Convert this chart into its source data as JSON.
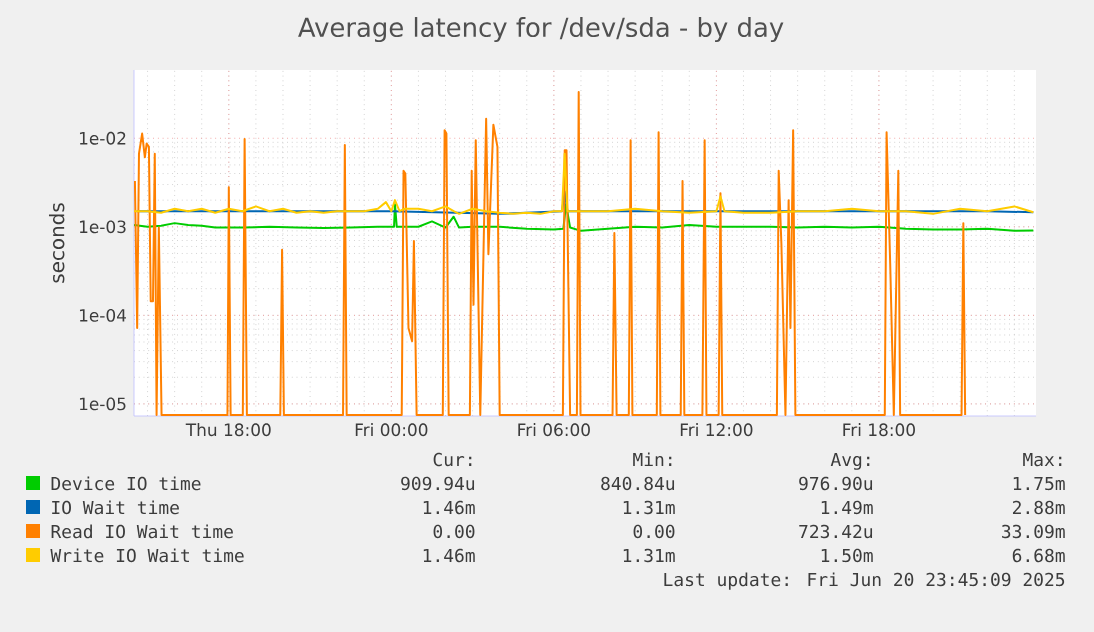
{
  "chart_data": {
    "type": "line",
    "title": "Average latency for /dev/sda - by day",
    "ylabel": "seconds",
    "log": "y",
    "grid": true,
    "legend": "bottom",
    "xlim": [
      "2025-06-19T14:30",
      "2025-06-20T23:48"
    ],
    "ylim": [
      7.3e-06,
      0.059
    ],
    "xticks": [
      {
        "value": "2025-06-19T18:00",
        "label": "Thu 18:00"
      },
      {
        "value": "2025-06-20T00:00",
        "label": "Fri 00:00"
      },
      {
        "value": "2025-06-20T06:00",
        "label": "Fri 06:00"
      },
      {
        "value": "2025-06-20T12:00",
        "label": "Fri 12:00"
      },
      {
        "value": "2025-06-20T18:00",
        "label": "Fri 18:00"
      }
    ],
    "yticks": [
      {
        "value": 1e-05,
        "label": "1e-05"
      },
      {
        "value": 0.0001,
        "label": "1e-04"
      },
      {
        "value": 0.001,
        "label": "1e-03"
      },
      {
        "value": 0.01,
        "label": "1e-02"
      }
    ],
    "series": [
      {
        "name": "Device IO time",
        "color": "#00cc00",
        "x": [
          "2025-06-19T14:30",
          "2025-06-19T15:00",
          "2025-06-19T15:30",
          "2025-06-19T16:00",
          "2025-06-19T16:30",
          "2025-06-19T17:00",
          "2025-06-19T17:30",
          "2025-06-19T18:30",
          "2025-06-19T19:30",
          "2025-06-19T20:30",
          "2025-06-19T21:30",
          "2025-06-19T22:30",
          "2025-06-19T23:30",
          "2025-06-20T00:06",
          "2025-06-20T00:08",
          "2025-06-20T00:12",
          "2025-06-20T01:00",
          "2025-06-20T01:30",
          "2025-06-20T02:00",
          "2025-06-20T02:18",
          "2025-06-20T02:30",
          "2025-06-20T03:00",
          "2025-06-20T04:00",
          "2025-06-20T05:00",
          "2025-06-20T06:00",
          "2025-06-20T06:21",
          "2025-06-20T06:27",
          "2025-06-20T06:36",
          "2025-06-20T07:00",
          "2025-06-20T08:00",
          "2025-06-20T09:00",
          "2025-06-20T10:00",
          "2025-06-20T11:00",
          "2025-06-20T12:00",
          "2025-06-20T13:00",
          "2025-06-20T14:00",
          "2025-06-20T15:00",
          "2025-06-20T16:00",
          "2025-06-20T17:00",
          "2025-06-20T18:00",
          "2025-06-20T19:00",
          "2025-06-20T20:00",
          "2025-06-20T21:00",
          "2025-06-20T22:00",
          "2025-06-20T23:00",
          "2025-06-20T23:42"
        ],
        "values": [
          0.00105,
          0.001,
          0.00103,
          0.0011,
          0.00105,
          0.00103,
          0.00098,
          0.00098,
          0.001,
          0.00098,
          0.00097,
          0.00098,
          0.001,
          0.001,
          0.0018,
          0.001,
          0.001,
          0.00115,
          0.00098,
          0.0013,
          0.00098,
          0.001,
          0.001,
          0.00095,
          0.00093,
          0.00095,
          0.0018,
          0.00098,
          0.0009,
          0.00095,
          0.001,
          0.00098,
          0.00105,
          0.001,
          0.001,
          0.001,
          0.00098,
          0.001,
          0.00098,
          0.001,
          0.00095,
          0.00093,
          0.00093,
          0.00095,
          0.0009,
          0.00091
        ]
      },
      {
        "name": "IO Wait time",
        "color": "#0066b3",
        "x": [
          "2025-06-19T14:36",
          "2025-06-19T16:00",
          "2025-06-19T20:00",
          "2025-06-20T00:00",
          "2025-06-20T04:00",
          "2025-06-20T06:18",
          "2025-06-20T06:24",
          "2025-06-20T06:30",
          "2025-06-20T22:00",
          "2025-06-20T23:42"
        ],
        "values": [
          0.0015,
          0.0015,
          0.0015,
          0.0015,
          0.0014,
          0.0015,
          0.0025,
          0.0015,
          0.0015,
          0.00146
        ]
      },
      {
        "name": "Read IO Wait time",
        "color": "#ff8000",
        "x": [
          "2025-06-19T14:32",
          "2025-06-19T14:37",
          "2025-06-19T14:41",
          "2025-06-19T14:48",
          "2025-06-19T14:54",
          "2025-06-19T14:58",
          "2025-06-19T15:03",
          "2025-06-19T15:07",
          "2025-06-19T15:12",
          "2025-06-19T15:16",
          "2025-06-19T15:20",
          "2025-06-19T15:25",
          "2025-06-19T15:31",
          "2025-06-19T17:57",
          "2025-06-19T18:00",
          "2025-06-19T18:04",
          "2025-06-19T18:31",
          "2025-06-19T18:35",
          "2025-06-19T18:40",
          "2025-06-19T19:54",
          "2025-06-19T19:58",
          "2025-06-19T20:02",
          "2025-06-19T22:13",
          "2025-06-19T22:17",
          "2025-06-19T22:21",
          "2025-06-20T00:23",
          "2025-06-20T00:27",
          "2025-06-20T00:31",
          "2025-06-20T00:38",
          "2025-06-20T00:46",
          "2025-06-20T00:50",
          "2025-06-20T00:56",
          "2025-06-20T01:54",
          "2025-06-20T01:58",
          "2025-06-20T02:02",
          "2025-06-20T02:07",
          "2025-06-20T02:54",
          "2025-06-20T02:58",
          "2025-06-20T03:02",
          "2025-06-20T03:07",
          "2025-06-20T03:17",
          "2025-06-20T03:30",
          "2025-06-20T03:35",
          "2025-06-20T03:46",
          "2025-06-20T03:55",
          "2025-06-20T04:00",
          "2025-06-20T06:20",
          "2025-06-20T06:24",
          "2025-06-20T06:28",
          "2025-06-20T06:36",
          "2025-06-20T06:51",
          "2025-06-20T06:55",
          "2025-06-20T06:59",
          "2025-06-20T08:10",
          "2025-06-20T08:14",
          "2025-06-20T08:19",
          "2025-06-20T08:46",
          "2025-06-20T08:50",
          "2025-06-20T08:54",
          "2025-06-20T09:48",
          "2025-06-20T09:52",
          "2025-06-20T09:56",
          "2025-06-20T10:41",
          "2025-06-20T10:45",
          "2025-06-20T10:49",
          "2025-06-20T11:29",
          "2025-06-20T11:34",
          "2025-06-20T11:38",
          "2025-06-20T12:05",
          "2025-06-20T12:09",
          "2025-06-20T12:13",
          "2025-06-20T14:14",
          "2025-06-20T14:18",
          "2025-06-20T14:24",
          "2025-06-20T14:33",
          "2025-06-20T14:40",
          "2025-06-20T14:44",
          "2025-06-20T14:50",
          "2025-06-20T14:55",
          "2025-06-20T18:13",
          "2025-06-20T18:17",
          "2025-06-20T18:25",
          "2025-06-20T18:33",
          "2025-06-20T18:43",
          "2025-06-20T18:47",
          "2025-06-20T21:03",
          "2025-06-20T21:07",
          "2025-06-20T21:11"
        ],
        "values": [
          0.0033,
          7.2e-05,
          0.0067,
          0.0113,
          0.0061,
          0.0087,
          0.008,
          0.000144,
          0.000144,
          0.0067,
          7.5e-06,
          0.00098,
          7.5e-06,
          7.5e-06,
          0.0028,
          7.5e-06,
          7.5e-06,
          0.0098,
          7.5e-06,
          7.5e-06,
          0.00055,
          7.5e-06,
          7.5e-06,
          0.0084,
          7.5e-06,
          7.5e-06,
          0.0043,
          0.004,
          7.2e-05,
          5.1e-05,
          0.00069,
          7.5e-06,
          7.5e-06,
          0.0123,
          0.0113,
          7.5e-06,
          7.5e-06,
          0.0043,
          0.000132,
          0.0095,
          7.5e-06,
          0.0166,
          0.00049,
          0.0142,
          0.008,
          7.5e-06,
          7.5e-06,
          0.0073,
          0.0073,
          7.5e-06,
          7.5e-06,
          0.0333,
          7.5e-06,
          7.5e-06,
          0.00085,
          7.5e-06,
          7.5e-06,
          0.0095,
          7.5e-06,
          7.5e-06,
          0.0117,
          7.5e-06,
          7.5e-06,
          0.0033,
          7.5e-06,
          7.5e-06,
          0.0095,
          7.5e-06,
          7.5e-06,
          0.0024,
          7.5e-06,
          7.5e-06,
          0.0043,
          0.00064,
          7.5e-06,
          0.002,
          7.2e-05,
          0.0123,
          7.5e-06,
          7.5e-06,
          0.0117,
          0.00038,
          7.5e-06,
          0.0043,
          7.5e-06,
          7.5e-06,
          0.0011,
          7.5e-06
        ]
      },
      {
        "name": "Write IO Wait time",
        "color": "#ffcc00",
        "x": [
          "2025-06-19T14:30",
          "2025-06-19T15:00",
          "2025-06-19T15:30",
          "2025-06-19T16:00",
          "2025-06-19T16:30",
          "2025-06-19T17:00",
          "2025-06-19T17:30",
          "2025-06-19T18:00",
          "2025-06-19T18:30",
          "2025-06-19T19:00",
          "2025-06-19T19:30",
          "2025-06-19T20:00",
          "2025-06-19T20:30",
          "2025-06-19T21:00",
          "2025-06-19T21:30",
          "2025-06-19T22:00",
          "2025-06-19T22:30",
          "2025-06-19T23:00",
          "2025-06-19T23:30",
          "2025-06-19T23:48",
          "2025-06-20T00:00",
          "2025-06-20T00:08",
          "2025-06-20T00:18",
          "2025-06-20T00:30",
          "2025-06-20T01:00",
          "2025-06-20T01:30",
          "2025-06-20T02:00",
          "2025-06-20T02:18",
          "2025-06-20T02:30",
          "2025-06-20T03:00",
          "2025-06-20T03:30",
          "2025-06-20T04:00",
          "2025-06-20T04:30",
          "2025-06-20T05:00",
          "2025-06-20T05:30",
          "2025-06-20T06:00",
          "2025-06-20T06:18",
          "2025-06-20T06:24",
          "2025-06-20T06:30",
          "2025-06-20T07:00",
          "2025-06-20T08:00",
          "2025-06-20T09:00",
          "2025-06-20T10:00",
          "2025-06-20T11:00",
          "2025-06-20T12:00",
          "2025-06-20T12:09",
          "2025-06-20T12:18",
          "2025-06-20T13:00",
          "2025-06-20T14:00",
          "2025-06-20T15:00",
          "2025-06-20T16:00",
          "2025-06-20T17:00",
          "2025-06-20T18:00",
          "2025-06-20T19:00",
          "2025-06-20T20:00",
          "2025-06-20T21:00",
          "2025-06-20T22:00",
          "2025-06-20T23:00",
          "2025-06-20T23:42"
        ],
        "values": [
          0.0015,
          0.0015,
          0.00144,
          0.0016,
          0.0015,
          0.0016,
          0.00144,
          0.0016,
          0.0015,
          0.0017,
          0.0015,
          0.0016,
          0.00144,
          0.0015,
          0.00144,
          0.0015,
          0.0015,
          0.0015,
          0.0016,
          0.0019,
          0.0015,
          0.002,
          0.0015,
          0.0016,
          0.0016,
          0.0015,
          0.0017,
          0.0015,
          0.0014,
          0.0016,
          0.0015,
          0.00144,
          0.0014,
          0.00144,
          0.0014,
          0.0015,
          0.0015,
          0.0067,
          0.0015,
          0.0015,
          0.0015,
          0.0016,
          0.0015,
          0.00144,
          0.0015,
          0.0022,
          0.0015,
          0.00144,
          0.00144,
          0.0015,
          0.0015,
          0.0016,
          0.0015,
          0.0015,
          0.0014,
          0.0016,
          0.0015,
          0.0017,
          0.00146
        ]
      }
    ],
    "annotations": [
      "Cur:",
      "Min:",
      "Avg:",
      "Max:",
      "909.94u",
      "840.84u",
      "976.90u",
      "1.75m",
      "1.46m",
      "1.31m",
      "1.49m",
      "2.88m",
      "0.00",
      "0.00",
      "723.42u",
      "33.09m",
      "1.46m",
      "1.31m",
      "1.50m",
      "6.68m",
      "Last update: Fri Jun 20 23:45:09 2025"
    ]
  }
}
